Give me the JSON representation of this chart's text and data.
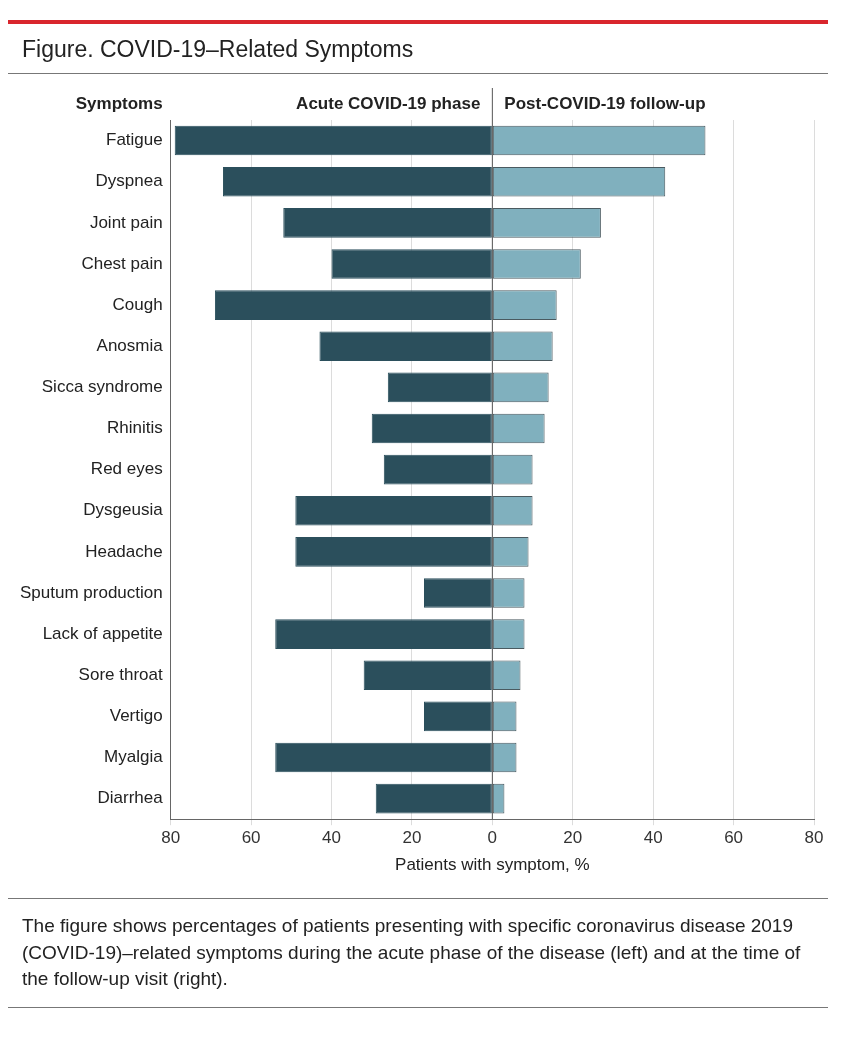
{
  "chart_data": {
    "type": "bar",
    "orientation": "horizontal",
    "stacked": true,
    "title": "Figure. COVID-19–Related Symptoms",
    "xlabel": "Patients with symptom, %",
    "ylabel": "Symptoms",
    "categories": [
      "Fatigue",
      "Dyspnea",
      "Joint pain",
      "Chest pain",
      "Cough",
      "Anosmia",
      "Sicca syndrome",
      "Rhinitis",
      "Red eyes",
      "Dysgeusia",
      "Headache",
      "Sputum production",
      "Lack of appetite",
      "Sore throat",
      "Vertigo",
      "Myalgia",
      "Diarrhea"
    ],
    "series": [
      {
        "name": "Acute COVID-19 phase",
        "color": "#2b4f5c",
        "values": [
          -79,
          -67,
          -52,
          -40,
          -69,
          -43,
          -26,
          -30,
          -27,
          -49,
          -49,
          -17,
          -54,
          -32,
          -17,
          -54,
          -29
        ]
      },
      {
        "name": "Post-COVID-19 follow-up",
        "color": "#80b0be",
        "values": [
          53,
          43,
          27,
          22,
          16,
          15,
          14,
          13,
          10,
          10,
          9,
          8,
          8,
          7,
          6,
          6,
          3
        ]
      }
    ],
    "xlim": [
      -80,
      80
    ],
    "xticks": [
      {
        "value": -80,
        "label": "80"
      },
      {
        "value": -60,
        "label": "60"
      },
      {
        "value": -40,
        "label": "40"
      },
      {
        "value": -20,
        "label": "20"
      },
      0,
      20,
      40,
      60,
      80
    ],
    "grid": "x",
    "annotations": [
      "The figure shows percentages of patients presenting with specific coronavirus disease 2019 (COVID-19)–related symptoms during the acute phase of the disease (left) and at the time of the follow-up visit (right)."
    ]
  }
}
